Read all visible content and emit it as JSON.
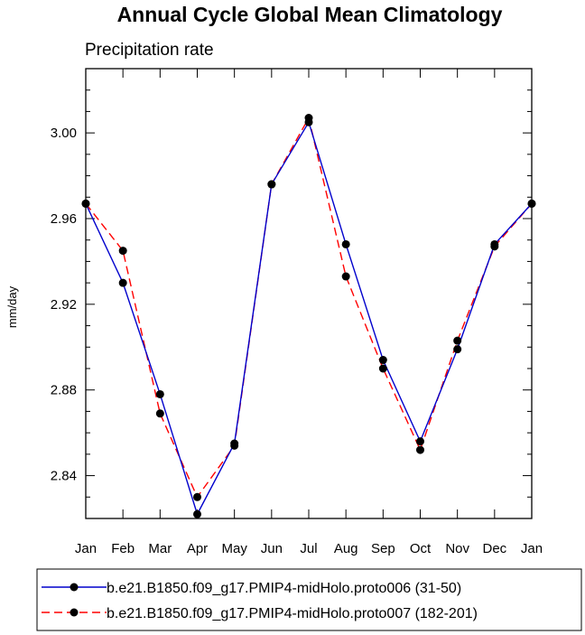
{
  "chart_data": {
    "type": "line",
    "title": "Annual Cycle Global Mean Climatology",
    "subtitle": "Precipitation rate",
    "xlabel": "",
    "ylabel": "mm/day",
    "categories": [
      "Jan",
      "Feb",
      "Mar",
      "Apr",
      "May",
      "Jun",
      "Jul",
      "Aug",
      "Sep",
      "Oct",
      "Nov",
      "Dec",
      "Jan"
    ],
    "ylim": [
      2.82,
      3.03
    ],
    "yticks": [
      "2.84",
      "2.88",
      "2.92",
      "2.96",
      "3.00"
    ],
    "ytick_values": [
      2.84,
      2.88,
      2.92,
      2.96,
      3.0
    ],
    "grid": false,
    "legend_position": "bottom",
    "series": [
      {
        "name": "b.e21.B1850.f09_g17.PMIP4-midHolo.proto006 (31-50)",
        "color": "#0000cc",
        "dash": "solid",
        "values": [
          2.967,
          2.93,
          2.878,
          2.822,
          2.855,
          2.976,
          3.005,
          2.948,
          2.894,
          2.856,
          2.899,
          2.948,
          2.967
        ]
      },
      {
        "name": "b.e21.B1850.f09_g17.PMIP4-midHolo.proto007 (182-201)",
        "color": "#ff0000",
        "dash": "dashed",
        "values": [
          2.967,
          2.945,
          2.869,
          2.83,
          2.854,
          2.976,
          3.007,
          2.933,
          2.89,
          2.852,
          2.903,
          2.947,
          2.967
        ]
      }
    ]
  }
}
